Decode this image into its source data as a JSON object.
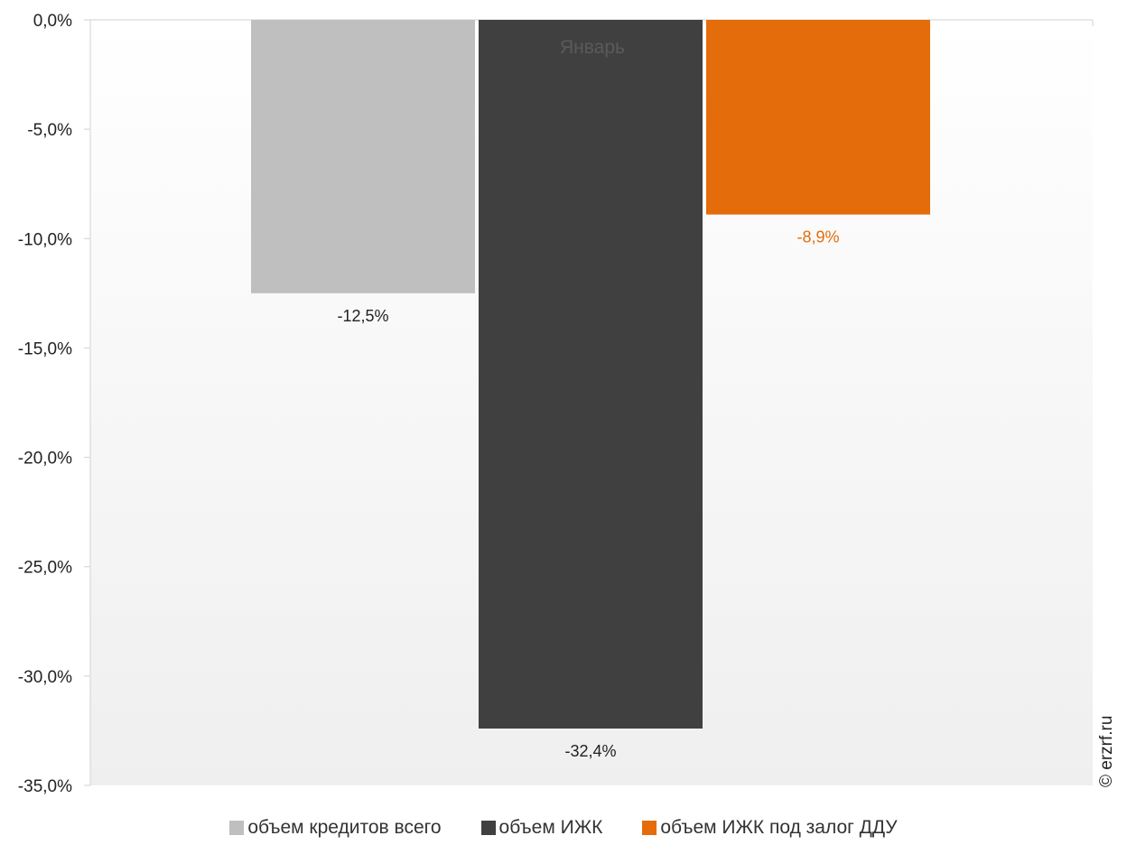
{
  "chart_data": {
    "type": "bar",
    "categories": [
      "Январь"
    ],
    "series": [
      {
        "name": "объем кредитов всего",
        "values": [
          -12.5
        ],
        "label": "-12,5%",
        "color": "#bfbfbf",
        "label_color": "#222222"
      },
      {
        "name": "объем ИЖК",
        "values": [
          -32.4
        ],
        "label": "-32,4%",
        "color": "#404040",
        "label_color": "#222222"
      },
      {
        "name": "объем ИЖК под залог ДДУ",
        "values": [
          -8.9
        ],
        "label": "-8,9%",
        "color": "#e46c0a",
        "label_color": "#e46c0a"
      }
    ],
    "ylim": [
      -35,
      0
    ],
    "yticks": [
      0,
      -5,
      -10,
      -15,
      -20,
      -25,
      -30,
      -35
    ],
    "ytick_labels": [
      "0,0%",
      "-5,0%",
      "-10,0%",
      "-15,0%",
      "-20,0%",
      "-25,0%",
      "-30,0%",
      "-35,0%"
    ],
    "legend_position": "bottom",
    "grid": false
  },
  "watermark": "© erzrf.ru"
}
